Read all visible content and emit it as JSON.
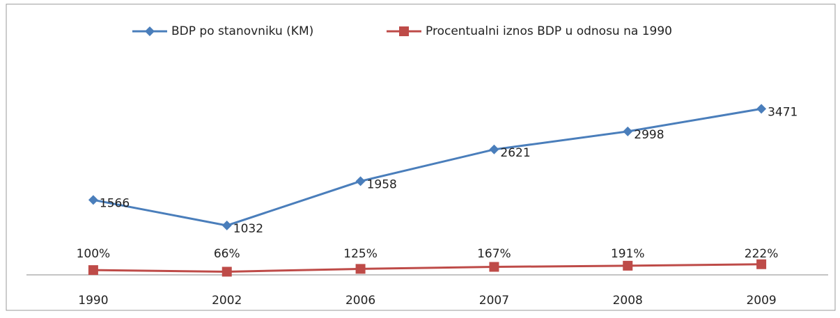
{
  "chart_data": {
    "type": "line",
    "categories": [
      "1990",
      "2002",
      "2006",
      "2007",
      "2008",
      "2009"
    ],
    "series": [
      {
        "name": "BDP po stanovniku (KM)",
        "color": "#4a7ebb",
        "marker": "diamond",
        "values": [
          1566,
          1032,
          1958,
          2621,
          2998,
          3471
        ]
      },
      {
        "name": "Procentualni iznos BDP u odnosu na 1990",
        "color": "#be4b48",
        "marker": "square",
        "values": [
          100,
          66,
          125,
          167,
          191,
          222
        ],
        "value_labels": [
          "100%",
          "66%",
          "125%",
          "167%",
          "191%",
          "222%"
        ]
      }
    ],
    "ylim": [
      0,
      4000
    ],
    "legend": "top"
  }
}
